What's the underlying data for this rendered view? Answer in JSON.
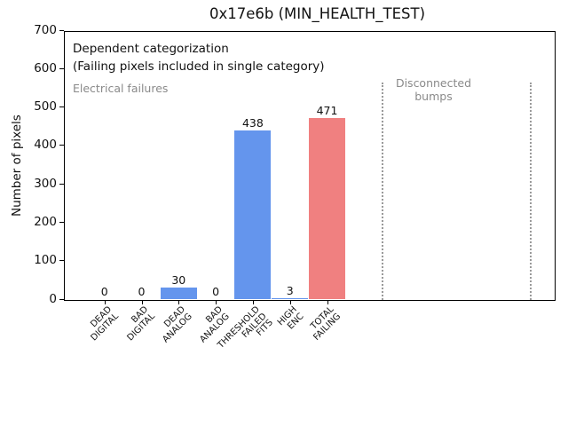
{
  "chart_data": {
    "type": "bar",
    "title": "0x17e6b (MIN_HEALTH_TEST)",
    "xlabel": "",
    "ylabel": "Number of pixels",
    "ylim": [
      0,
      700
    ],
    "yticks": [
      0,
      100,
      200,
      300,
      400,
      500,
      600,
      700
    ],
    "xlim": [
      -1.1,
      12.1
    ],
    "grid": false,
    "legend": false,
    "categories": [
      [
        "DEAD",
        "DIGITAL"
      ],
      [
        "BAD",
        "DIGITAL"
      ],
      [
        "DEAD",
        "ANALOG"
      ],
      [
        "BAD",
        "ANALOG"
      ],
      [
        "THRESHOLD",
        "FAILED",
        "FITS"
      ],
      [
        "HIGH",
        "ENC"
      ],
      [
        "TOTAL",
        "FAILING"
      ]
    ],
    "values": [
      0,
      0,
      30,
      0,
      438,
      3,
      471
    ],
    "bar_value_labels": [
      "0",
      "0",
      "30",
      "0",
      "438",
      "3",
      "471"
    ],
    "bar_colors": [
      "#6495ED",
      "#6495ED",
      "#6495ED",
      "#6495ED",
      "#6495ED",
      "#6495ED",
      "#F08080"
    ],
    "annotations": {
      "dependent_line1": "Dependent categorization",
      "dependent_line2": "(Failing pixels included in single category)",
      "electrical": "Electrical failures",
      "disconnected_line1": "Disconnected",
      "disconnected_line2": "bumps",
      "black_text_color": "#111111",
      "gray_text_color": "#8a8a8a"
    },
    "vlines": {
      "style": "dotted",
      "color": "#9a9a9a",
      "x_indices": [
        7.5,
        11.5
      ],
      "region_label": "Disconnected bumps"
    }
  }
}
